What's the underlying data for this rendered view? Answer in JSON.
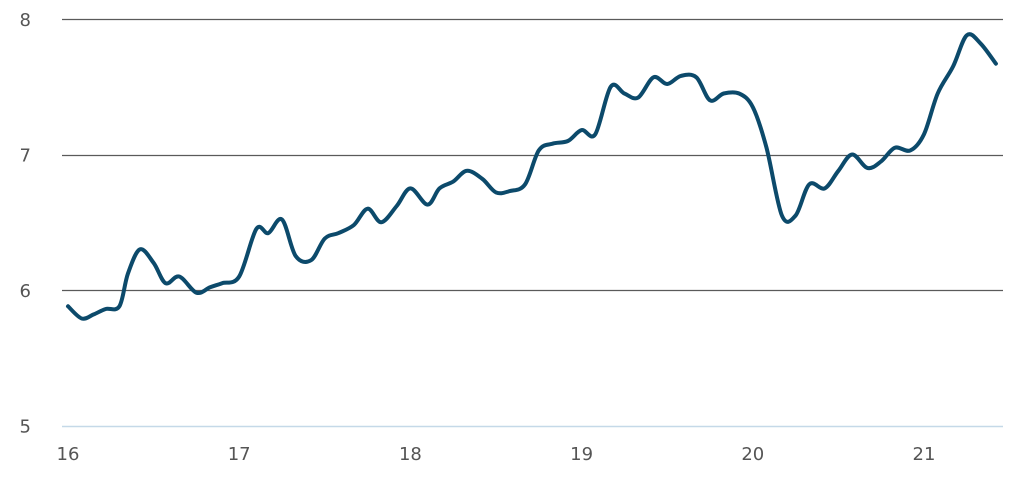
{
  "chart_data": {
    "type": "line",
    "title": "",
    "xlabel": "",
    "ylabel": "",
    "xlim": [
      16,
      21.5
    ],
    "ylim": [
      5,
      8
    ],
    "x_ticks": [
      "16",
      "17",
      "18",
      "19",
      "20",
      "21"
    ],
    "y_ticks": [
      "5",
      "6",
      "7",
      "8"
    ],
    "grid": "horizontal",
    "colors": {
      "line": "#0c4a6b",
      "gridline": "#5a5a5a",
      "baseline": "#c5d9e8",
      "tick_text": "#555555"
    },
    "series": [
      {
        "x": [
          16.0,
          16.08,
          16.15,
          16.22,
          16.3,
          16.35,
          16.42,
          16.5,
          16.57,
          16.65,
          16.75,
          16.83,
          16.9,
          17.0,
          17.1,
          17.17,
          17.25,
          17.33,
          17.42,
          17.5,
          17.58,
          17.67,
          17.75,
          17.83,
          17.92,
          18.0,
          18.1,
          18.17,
          18.25,
          18.33,
          18.42,
          18.5,
          18.58,
          18.67,
          18.75,
          18.83,
          18.92,
          19.0,
          19.08,
          19.17,
          19.25,
          19.33,
          19.42,
          19.5,
          19.58,
          19.67,
          19.75,
          19.83,
          19.92,
          20.0,
          20.08,
          20.17,
          20.25,
          20.33,
          20.42,
          20.5,
          20.58,
          20.67,
          20.75,
          20.83,
          20.92,
          21.0,
          21.08,
          21.17,
          21.25,
          21.33,
          21.42
        ],
        "values": [
          5.88,
          5.79,
          5.82,
          5.86,
          5.88,
          6.12,
          6.3,
          6.2,
          6.05,
          6.1,
          5.98,
          6.02,
          6.05,
          6.1,
          6.45,
          6.42,
          6.52,
          6.25,
          6.22,
          6.38,
          6.42,
          6.48,
          6.6,
          6.5,
          6.62,
          6.75,
          6.63,
          6.75,
          6.8,
          6.88,
          6.82,
          6.72,
          6.73,
          6.78,
          7.03,
          7.08,
          7.1,
          7.18,
          7.15,
          7.5,
          7.45,
          7.42,
          7.57,
          7.52,
          7.58,
          7.57,
          7.4,
          7.45,
          7.45,
          7.35,
          7.05,
          6.55,
          6.55,
          6.78,
          6.75,
          6.88,
          7.0,
          6.9,
          6.95,
          7.05,
          7.03,
          7.15,
          7.45,
          7.65,
          7.88,
          7.82,
          7.67
        ]
      }
    ]
  }
}
